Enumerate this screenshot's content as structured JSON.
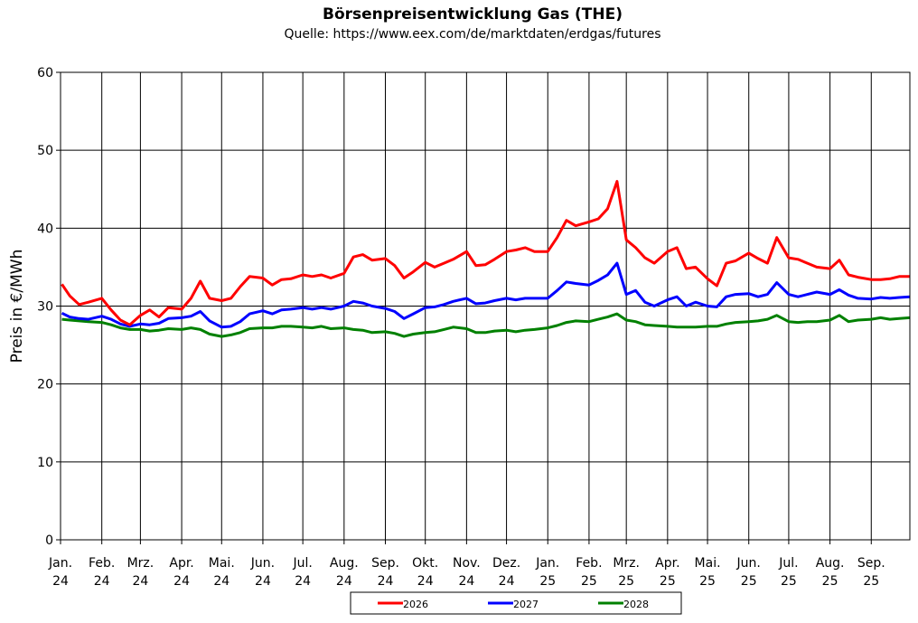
{
  "chart_data": {
    "type": "line",
    "title": "Börsenpreisentwicklung Gas (THE)",
    "subtitle": "Quelle: https://www.eex.com/de/marktdaten/erdgas/futures",
    "ylabel": "Preis in €/MWh",
    "xlabel": "",
    "ylim": [
      0,
      60
    ],
    "yticks": [
      "0",
      "10",
      "20",
      "30",
      "40",
      "50",
      "60"
    ],
    "grid": true,
    "legend_position": "bottom",
    "month_ticks": [
      {
        "month": "Jan.",
        "year": "24"
      },
      {
        "month": "Feb.",
        "year": "24"
      },
      {
        "month": "Mrz.",
        "year": "24"
      },
      {
        "month": "Apr.",
        "year": "24"
      },
      {
        "month": "Mai.",
        "year": "24"
      },
      {
        "month": "Jun.",
        "year": "24"
      },
      {
        "month": "Jul.",
        "year": "24"
      },
      {
        "month": "Aug.",
        "year": "24"
      },
      {
        "month": "Sep.",
        "year": "24"
      },
      {
        "month": "Okt.",
        "year": "24"
      },
      {
        "month": "Nov.",
        "year": "24"
      },
      {
        "month": "Dez.",
        "year": "24"
      },
      {
        "month": "Jan.",
        "year": "25"
      },
      {
        "month": "Feb.",
        "year": "25"
      },
      {
        "month": "Mrz.",
        "year": "25"
      },
      {
        "month": "Apr.",
        "year": "25"
      },
      {
        "month": "Mai.",
        "year": "25"
      },
      {
        "month": "Jun.",
        "year": "25"
      },
      {
        "month": "Jul.",
        "year": "25"
      },
      {
        "month": "Aug.",
        "year": "25"
      },
      {
        "month": "Sep.",
        "year": "25"
      }
    ],
    "x": [
      "2024-01-02",
      "2024-01-08",
      "2024-01-15",
      "2024-01-22",
      "2024-02-01",
      "2024-02-08",
      "2024-02-15",
      "2024-02-22",
      "2024-03-01",
      "2024-03-08",
      "2024-03-15",
      "2024-03-22",
      "2024-04-01",
      "2024-04-08",
      "2024-04-15",
      "2024-04-22",
      "2024-05-01",
      "2024-05-08",
      "2024-05-15",
      "2024-05-22",
      "2024-06-01",
      "2024-06-08",
      "2024-06-15",
      "2024-06-22",
      "2024-07-01",
      "2024-07-08",
      "2024-07-15",
      "2024-07-22",
      "2024-08-01",
      "2024-08-08",
      "2024-08-15",
      "2024-08-22",
      "2024-09-01",
      "2024-09-08",
      "2024-09-15",
      "2024-09-22",
      "2024-10-01",
      "2024-10-08",
      "2024-10-15",
      "2024-10-22",
      "2024-11-01",
      "2024-11-08",
      "2024-11-15",
      "2024-11-22",
      "2024-12-01",
      "2024-12-08",
      "2024-12-15",
      "2024-12-22",
      "2025-01-01",
      "2025-01-08",
      "2025-01-15",
      "2025-01-22",
      "2025-02-01",
      "2025-02-08",
      "2025-02-15",
      "2025-02-22",
      "2025-03-01",
      "2025-03-08",
      "2025-03-15",
      "2025-03-22",
      "2025-04-01",
      "2025-04-08",
      "2025-04-15",
      "2025-04-22",
      "2025-05-01",
      "2025-05-08",
      "2025-05-15",
      "2025-05-22",
      "2025-06-01",
      "2025-06-08",
      "2025-06-15",
      "2025-06-22",
      "2025-07-01",
      "2025-07-08",
      "2025-07-15",
      "2025-07-22",
      "2025-08-01",
      "2025-08-08",
      "2025-08-15",
      "2025-08-22",
      "2025-09-01",
      "2025-09-08",
      "2025-09-15",
      "2025-09-22",
      "2025-09-30"
    ],
    "series": [
      {
        "name": "2026",
        "color": "#ff0000",
        "values": [
          32.8,
          31.3,
          30.2,
          30.5,
          31.0,
          29.5,
          28.2,
          27.6,
          28.8,
          29.5,
          28.6,
          29.8,
          29.6,
          31.0,
          33.2,
          31.0,
          30.7,
          31.0,
          32.5,
          33.8,
          33.6,
          32.7,
          33.4,
          33.5,
          34.0,
          33.8,
          34.0,
          33.6,
          34.2,
          36.3,
          36.6,
          35.9,
          36.1,
          35.2,
          33.6,
          34.4,
          35.6,
          35.0,
          35.5,
          36.0,
          37.0,
          35.2,
          35.3,
          36.0,
          37.0,
          37.2,
          37.5,
          37.0,
          37.0,
          38.8,
          41.0,
          40.3,
          40.8,
          41.2,
          42.5,
          46.0,
          38.5,
          37.5,
          36.2,
          35.5,
          37.0,
          37.5,
          34.8,
          35.0,
          33.5,
          32.6,
          35.5,
          35.8,
          36.8,
          36.1,
          35.5,
          38.8,
          36.2,
          36.0,
          35.5,
          35.0,
          34.8,
          35.9,
          34.0,
          33.7,
          33.4,
          33.4,
          33.5,
          33.8,
          33.8
        ]
      },
      {
        "name": "2027",
        "color": "#0000ff",
        "values": [
          29.1,
          28.6,
          28.4,
          28.3,
          28.7,
          28.3,
          27.7,
          27.4,
          27.7,
          27.6,
          27.8,
          28.4,
          28.5,
          28.7,
          29.3,
          28.1,
          27.3,
          27.4,
          28.0,
          29.0,
          29.4,
          29.0,
          29.5,
          29.6,
          29.8,
          29.6,
          29.8,
          29.6,
          30.0,
          30.6,
          30.4,
          30.0,
          29.7,
          29.3,
          28.4,
          29.0,
          29.8,
          29.9,
          30.2,
          30.6,
          31.0,
          30.3,
          30.4,
          30.7,
          31.0,
          30.8,
          31.0,
          31.0,
          31.0,
          32.0,
          33.1,
          32.9,
          32.7,
          33.3,
          34.0,
          35.5,
          31.5,
          32.0,
          30.5,
          30.0,
          30.8,
          31.2,
          30.0,
          30.5,
          30.0,
          29.9,
          31.2,
          31.5,
          31.6,
          31.2,
          31.5,
          33.0,
          31.5,
          31.2,
          31.5,
          31.8,
          31.5,
          32.1,
          31.4,
          31.0,
          30.9,
          31.1,
          31.0,
          31.1,
          31.2
        ]
      },
      {
        "name": "2028",
        "color": "#008000",
        "values": [
          28.3,
          28.2,
          28.1,
          28.0,
          27.9,
          27.6,
          27.2,
          27.0,
          27.0,
          26.8,
          26.9,
          27.1,
          27.0,
          27.2,
          27.0,
          26.4,
          26.1,
          26.3,
          26.6,
          27.1,
          27.2,
          27.2,
          27.4,
          27.4,
          27.3,
          27.2,
          27.4,
          27.1,
          27.2,
          27.0,
          26.9,
          26.6,
          26.7,
          26.5,
          26.1,
          26.4,
          26.6,
          26.7,
          27.0,
          27.3,
          27.1,
          26.6,
          26.6,
          26.8,
          26.9,
          26.7,
          26.9,
          27.0,
          27.2,
          27.5,
          27.9,
          28.1,
          28.0,
          28.3,
          28.6,
          29.0,
          28.2,
          28.0,
          27.6,
          27.5,
          27.4,
          27.3,
          27.3,
          27.3,
          27.4,
          27.4,
          27.7,
          27.9,
          28.0,
          28.1,
          28.3,
          28.8,
          28.0,
          27.9,
          28.0,
          28.0,
          28.2,
          28.8,
          28.0,
          28.2,
          28.3,
          28.5,
          28.3,
          28.4,
          28.5
        ]
      }
    ]
  }
}
